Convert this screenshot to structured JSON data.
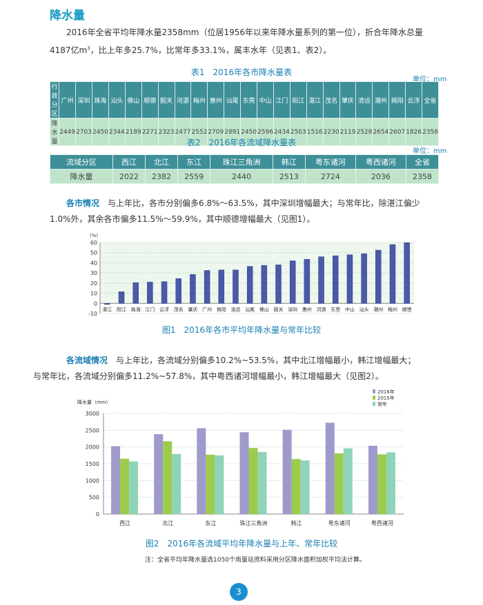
{
  "title": "降水量",
  "intro": {
    "line1": "2016年全省平均年降水量2358mm（位居1956年以来年降水量系列的第一位），折合年降水总量",
    "line2a": "4187亿m",
    "sup": "3",
    "line2b": "，比上年多25.7%，比常年多33.1%，属丰水年（见表1、表2）。"
  },
  "table1": {
    "title": "表1　2016年各市降水量表",
    "unit": "单位：mm",
    "row_header": "行政分区",
    "row_label": "降水量",
    "columns": [
      "广州",
      "深圳",
      "珠海",
      "汕头",
      "佛山",
      "顺德",
      "韶关",
      "河源",
      "梅州",
      "惠州",
      "汕尾",
      "东莞",
      "中山",
      "江门",
      "阳江",
      "湛江",
      "茂名",
      "肇庆",
      "清远",
      "潮州",
      "揭阳",
      "云浮",
      "全省"
    ],
    "values": [
      "2449",
      "2703",
      "2450",
      "2344",
      "2189",
      "2271",
      "2323",
      "2477",
      "2552",
      "2709",
      "2891",
      "2450",
      "2596",
      "2434",
      "2503",
      "1516",
      "2230",
      "2119",
      "2528",
      "2654",
      "2607",
      "1826",
      "2358"
    ]
  },
  "table2": {
    "title": "表2　2016年各流域降水量表",
    "unit": "单位：mm",
    "row_header": "流域分区",
    "row_label": "降水量",
    "columns": [
      "西江",
      "北江",
      "东江",
      "珠江三角洲",
      "韩江",
      "粤东诸河",
      "粤西诸河",
      "全省"
    ],
    "values": [
      "2022",
      "2382",
      "2559",
      "2440",
      "2513",
      "2724",
      "2036",
      "2358"
    ]
  },
  "para2": {
    "lead": "各市情况",
    "text1": "　与上年比，各市分别偏多6.8%～63.5%，其中深圳增幅最大；与常年比，除湛江偏少",
    "text2": "1.0%外，其余各市偏多11.5%～59.9%，其中顺德增幅最大（见图1）。"
  },
  "para3": {
    "lead": "各流域情况",
    "text1": "　与上年比，各流域分别偏多10.2%~53.5%，其中北江增幅最小，韩江增幅最大；",
    "text2": "与常年比，各流域分别偏多11.2%~57.8%，其中粤西诸河增幅最小，韩江增幅最大（见图2）。"
  },
  "chart_data": [
    {
      "type": "bar",
      "title": "图1　2016年各市平均年降水量与常年比较",
      "ylabel": "(%)",
      "ylim": [
        -10,
        60
      ],
      "yticks": [
        -10,
        0,
        10,
        20,
        30,
        40,
        50,
        60
      ],
      "categories": [
        "湛江",
        "阳江",
        "珠海",
        "江门",
        "云浮",
        "茂名",
        "肇庆",
        "广州",
        "揭阳",
        "清远",
        "汕尾",
        "佛山",
        "韶关",
        "深圳",
        "惠州",
        "河源",
        "东莞",
        "中山",
        "汕头",
        "潮州",
        "梅州",
        "顺德"
      ],
      "values": [
        -1.0,
        11.5,
        20.5,
        21,
        21.5,
        24.5,
        28.5,
        32.5,
        33,
        33,
        36.5,
        37.5,
        38,
        42,
        43.5,
        46,
        47,
        48,
        49,
        52.5,
        58,
        59.9
      ],
      "color": "#4a5aa8"
    },
    {
      "type": "bar",
      "title": "图2　2016年各流域平均年降水量与上年、常年比较",
      "ylabel": "降水量（mm）",
      "ylim": [
        0,
        3000
      ],
      "yticks": [
        0,
        500,
        1000,
        1500,
        2000,
        2500,
        3000
      ],
      "categories": [
        "西江",
        "北江",
        "东江",
        "珠江三角洲",
        "韩江",
        "粤东诸河",
        "粤西诸河"
      ],
      "series": [
        {
          "name": "2016年",
          "color": "#9e9acb",
          "values": [
            2022,
            2382,
            2559,
            2440,
            2513,
            2724,
            2036
          ]
        },
        {
          "name": "2015年",
          "color": "#9ccc4c",
          "values": [
            1650,
            2170,
            1770,
            1970,
            1640,
            1810,
            1780
          ]
        },
        {
          "name": "常年",
          "color": "#8fd4b8",
          "values": [
            1570,
            1790,
            1750,
            1850,
            1600,
            1960,
            1840
          ]
        }
      ]
    }
  ],
  "note": "注：全省平均年降水量选1050个雨量站资料采用分区降水面积加权平均法计算。",
  "page_number": "3"
}
